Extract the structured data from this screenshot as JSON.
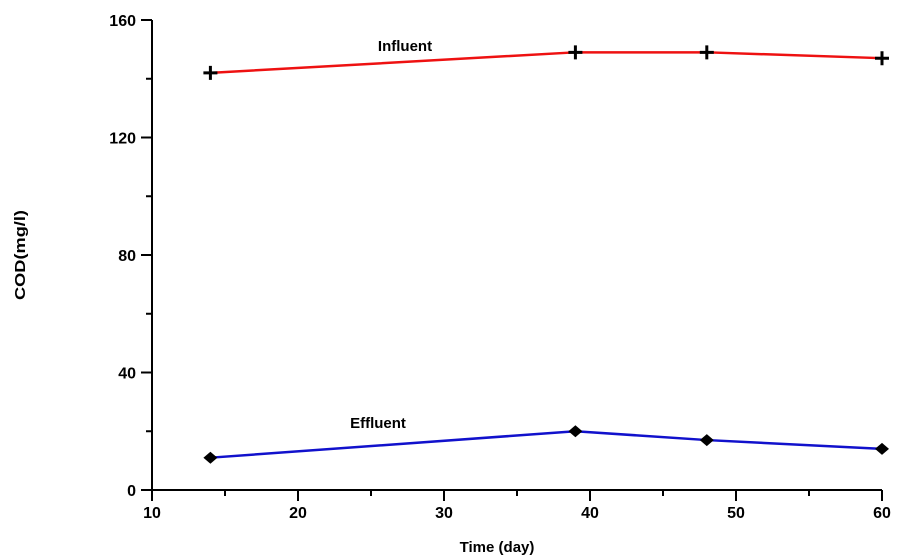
{
  "chart_data": {
    "type": "line",
    "title": "",
    "xlabel": "Time (day)",
    "ylabel": "COD(mg/l)",
    "xlim": [
      10,
      60
    ],
    "ylim": [
      0,
      160
    ],
    "xticks": [
      10,
      20,
      30,
      40,
      50,
      60
    ],
    "yticks": [
      0,
      40,
      80,
      120,
      160
    ],
    "grid": false,
    "legend": "none",
    "series": [
      {
        "name": "Influent",
        "color": "#ee1111",
        "marker": "plus",
        "x": [
          14,
          39,
          48,
          60
        ],
        "values": [
          142,
          149,
          149,
          147
        ]
      },
      {
        "name": "Effluent",
        "color": "#1111cc",
        "marker": "diamond",
        "x": [
          14,
          39,
          48,
          60
        ],
        "values": [
          11,
          20,
          17,
          14
        ]
      }
    ]
  }
}
